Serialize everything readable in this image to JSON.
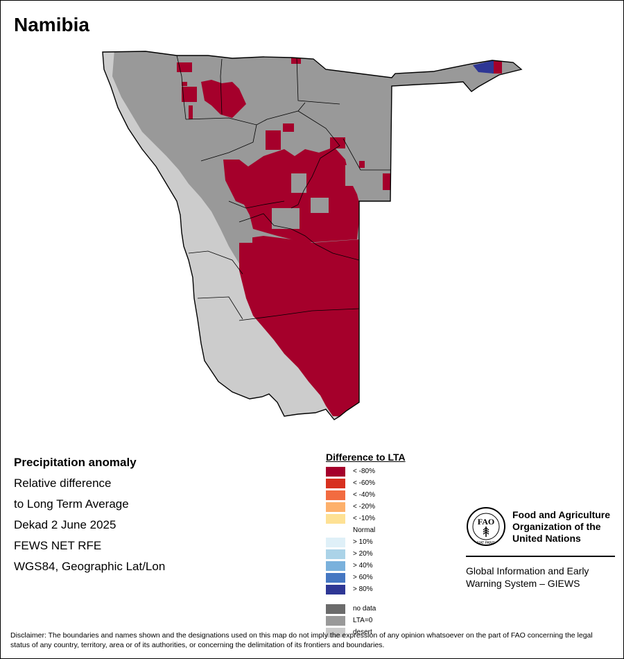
{
  "title": "Namibia",
  "info_lines": [
    "Precipitation anomaly",
    "Relative difference",
    "to Long Term Average",
    "Dekad 2 June 2025",
    "FEWS NET RFE",
    "WGS84, Geographic Lat/Lon"
  ],
  "legend": {
    "title": "Difference to LTA",
    "classes": [
      {
        "label": "< -80%",
        "color": "#a5002b"
      },
      {
        "label": "< -60%",
        "color": "#d7301f"
      },
      {
        "label": "< -40%",
        "color": "#f26b40"
      },
      {
        "label": "< -20%",
        "color": "#fdb06b"
      },
      {
        "label": "< -10%",
        "color": "#fee194"
      },
      {
        "label": "Normal",
        "color": "#ffffff"
      },
      {
        "label": "> 10%",
        "color": "#dff0f8"
      },
      {
        "label": "> 20%",
        "color": "#abd3e8"
      },
      {
        "label": "> 40%",
        "color": "#7ab1dc"
      },
      {
        "label": "> 60%",
        "color": "#4577c2"
      },
      {
        "label": "> 80%",
        "color": "#2e3795"
      }
    ],
    "extra": [
      {
        "label": "no data",
        "color": "#6b6b6b"
      },
      {
        "label": "LTA=0",
        "color": "#999999"
      },
      {
        "label": "desert",
        "color": "#cccccc"
      }
    ]
  },
  "fao": {
    "name": "Food and Agriculture Organization of the United Nations",
    "logo_letters": "FAO",
    "logo_motto": "FIAT PANIS",
    "giews": "Global Information and Early Warning System – GIEWS"
  },
  "disclaimer": "Disclaimer: The boundaries and names shown and the designations used on this map do not imply the expression of any opinion whatsoever on the part of FAO concerning the legal status of any country, territory, area or of its authorities, or concerning the delimitation of its frontiers and boundaries.",
  "map_colors": {
    "lta_zero": "#999999",
    "desert": "#cccccc",
    "deficit": "#a5002b",
    "surplus": "#2e3795"
  }
}
